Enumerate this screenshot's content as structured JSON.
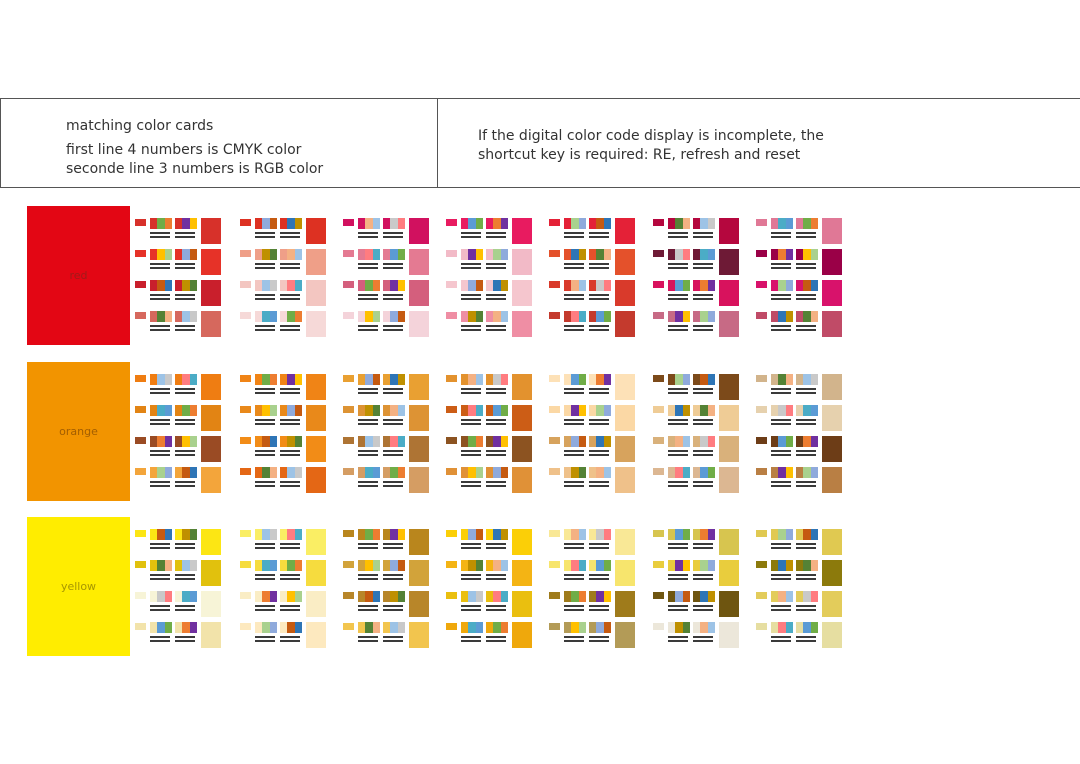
{
  "info": {
    "title": "matching color cards",
    "line1": "first line 4 numbers is CMYK color",
    "line2": "seconde line 3 numbers is RGB color",
    "note1": "If the digital color code display is incomplete, the",
    "note2": "shortcut key is required: RE, refresh and reset"
  },
  "families": [
    {
      "label": "red",
      "swatch_color": "#e30614",
      "label_color": "#a11a1a",
      "groups": [
        [
          "#d7312a",
          "#e63228",
          "#c91f2c",
          "#d6685d"
        ],
        [
          "#dd3122",
          "#ef9f88",
          "#f3c6c1",
          "#f6d9d8"
        ],
        [
          "#d1115f",
          "#e47a92",
          "#d45f7d",
          "#f4d3da"
        ],
        [
          "#e81b60",
          "#f2bac7",
          "#f5c6ce",
          "#ef8ea4"
        ],
        [
          "#e42137",
          "#e4512b",
          "#d93a2b",
          "#c43a2d"
        ],
        [
          "#b5073e",
          "#6e1a36",
          "#d8125d",
          "#c76a85"
        ],
        [
          "#e07896",
          "#9a0047",
          "#d8126b",
          "#c04b67"
        ]
      ]
    },
    {
      "label": "orange",
      "swatch_color": "#f29400",
      "label_color": "#a35e00",
      "groups": [
        [
          "#ef7d12",
          "#e28414",
          "#9a4b24",
          "#f3a53b"
        ],
        [
          "#f08416",
          "#e9891a",
          "#f28c17",
          "#e46715"
        ],
        [
          "#e9a032",
          "#dd9334",
          "#ae7434",
          "#d59d63"
        ],
        [
          "#e3922e",
          "#cc5d16",
          "#8c5321",
          "#e09137"
        ],
        [
          "#fde1b7",
          "#fbd8a5",
          "#d7a35d",
          "#efc18a"
        ],
        [
          "#7c4a1a",
          "#efcc96",
          "#d9b17b",
          "#dcb792"
        ],
        [
          "#d2b48c",
          "#e6d1ae",
          "#6d3d17",
          "#b97f44"
        ]
      ]
    },
    {
      "label": "yellow",
      "swatch_color": "#ffed00",
      "label_color": "#a69600",
      "groups": [
        [
          "#fce614",
          "#e1c10d",
          "#f7f4d7",
          "#f2e3aa"
        ],
        [
          "#faee64",
          "#f6dc3e",
          "#faedc5",
          "#fde9bf"
        ],
        [
          "#b9861d",
          "#d2a33a",
          "#b88629",
          "#f2c54e"
        ],
        [
          "#fbcf07",
          "#f4b414",
          "#eabf0f",
          "#efa80c"
        ],
        [
          "#f9e896",
          "#f7e56d",
          "#9f7b1b",
          "#b39b57"
        ],
        [
          "#d7c54f",
          "#e9cd3d",
          "#6e5510",
          "#ece7da"
        ],
        [
          "#e0c951",
          "#8c7a0c",
          "#e3cc5b",
          "#e6dea1"
        ]
      ]
    }
  ]
}
